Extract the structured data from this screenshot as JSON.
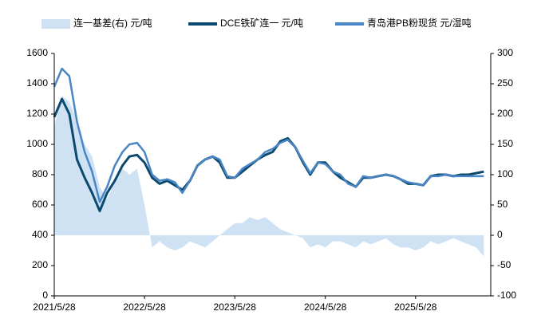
{
  "chart_data": {
    "type": "line",
    "x": [
      "2021/5/28",
      "2021/6/28",
      "2021/7/28",
      "2021/8/28",
      "2021/9/28",
      "2021/10/28",
      "2021/11/28",
      "2021/12/28",
      "2022/1/28",
      "2022/2/28",
      "2022/3/28",
      "2022/4/28",
      "2022/5/28",
      "2022/6/28",
      "2022/7/28",
      "2022/8/28",
      "2022/9/28",
      "2022/10/28",
      "2022/11/28",
      "2022/12/28",
      "2023/1/28",
      "2023/2/28",
      "2023/3/28",
      "2023/4/28",
      "2023/5/28",
      "2023/6/28",
      "2023/7/28",
      "2023/8/28",
      "2023/9/28",
      "2023/10/28",
      "2023/11/28",
      "2023/12/28",
      "2024/1/28",
      "2024/2/28",
      "2024/3/28",
      "2024/4/28",
      "2024/5/28",
      "2024/6/28",
      "2024/7/28",
      "2024/8/28",
      "2024/9/28",
      "2024/10/28",
      "2024/11/28",
      "2024/12/28",
      "2025/1/28",
      "2025/2/28",
      "2025/3/28",
      "2025/4/28",
      "2025/5/28",
      "2025/6/28",
      "2025/7/28",
      "2025/8/28",
      "2025/9/28",
      "2025/10/28",
      "2025/11/28",
      "2025/12/28",
      "2026/1/28",
      "2026/2/28"
    ],
    "series": [
      {
        "name": "连一基差(右) 元/吨",
        "type": "area",
        "axis": "y2",
        "color": "#cfe2f3",
        "values": [
          180,
          230,
          220,
          190,
          150,
          130,
          80,
          60,
          90,
          110,
          100,
          110,
          50,
          -20,
          -10,
          -20,
          -25,
          -20,
          -10,
          -15,
          -20,
          -10,
          0,
          10,
          20,
          20,
          30,
          25,
          30,
          20,
          10,
          5,
          0,
          -5,
          -20,
          -15,
          -20,
          -10,
          -10,
          -15,
          -20,
          -10,
          -15,
          -10,
          -5,
          -15,
          -20,
          -20,
          -25,
          -20,
          -10,
          -15,
          -10,
          -5,
          -10,
          -15,
          -20,
          -35
        ]
      },
      {
        "name": "DCE铁矿连一 元/吨",
        "type": "line",
        "color": "#0b4a6e",
        "values": [
          1180,
          1300,
          1200,
          900,
          780,
          680,
          560,
          680,
          760,
          860,
          920,
          930,
          880,
          780,
          740,
          760,
          730,
          700,
          760,
          860,
          900,
          920,
          880,
          780,
          780,
          820,
          860,
          900,
          930,
          950,
          1020,
          1040,
          980,
          880,
          800,
          880,
          880,
          820,
          780,
          750,
          720,
          780,
          780,
          790,
          800,
          790,
          770,
          740,
          740,
          730,
          790,
          800,
          800,
          790,
          800,
          800,
          810,
          820
        ]
      },
      {
        "name": "青岛港PB粉现货 元/湿吨",
        "type": "line",
        "color": "#4a86c5",
        "values": [
          1380,
          1500,
          1450,
          1150,
          950,
          820,
          620,
          720,
          860,
          950,
          1000,
          1010,
          950,
          800,
          760,
          770,
          750,
          680,
          760,
          860,
          900,
          920,
          900,
          790,
          780,
          840,
          870,
          900,
          950,
          970,
          1010,
          1030,
          980,
          890,
          810,
          880,
          870,
          820,
          800,
          740,
          720,
          790,
          780,
          790,
          800,
          790,
          770,
          750,
          740,
          730,
          790,
          790,
          800,
          790,
          790,
          790,
          790,
          790
        ]
      }
    ],
    "xlim": [
      "2021/5/28",
      "2026/3/28"
    ],
    "xticks": [
      "2021/5/28",
      "2022/5/28",
      "2023/5/28",
      "2024/5/28",
      "2025/5/28"
    ],
    "ylim": [
      0,
      1600
    ],
    "yticks": [
      0,
      200,
      400,
      600,
      800,
      1000,
      1200,
      1400,
      1600
    ],
    "y2lim": [
      -100,
      300
    ],
    "y2ticks": [
      -100,
      -50,
      0,
      50,
      100,
      150,
      200,
      250,
      300
    ],
    "legend": "top"
  }
}
